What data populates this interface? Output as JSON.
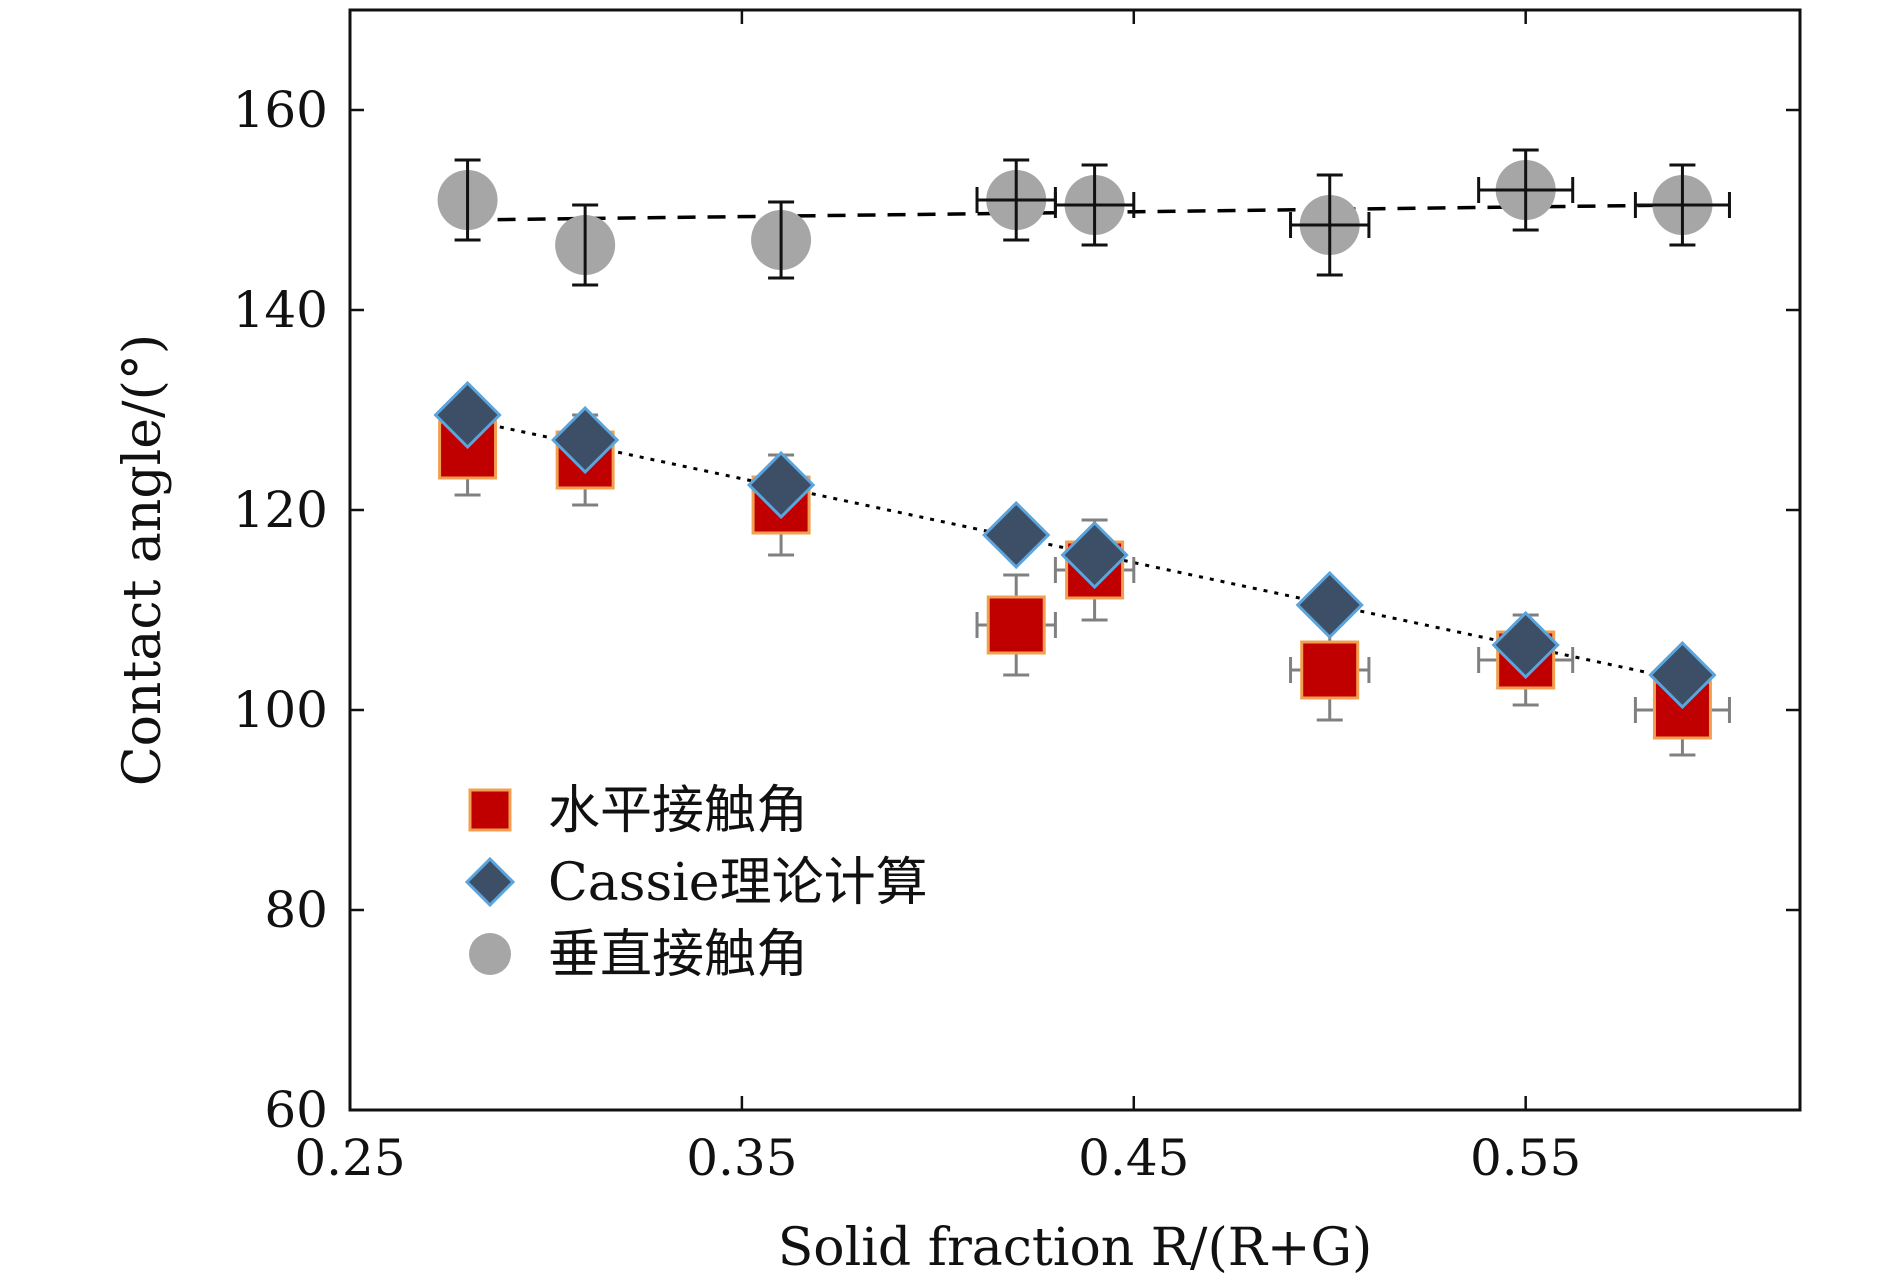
{
  "chart_data": {
    "type": "scatter",
    "title": "",
    "xlabel": "Solid fraction R/(R+G)",
    "ylabel": "Contact angle/(°)",
    "xlim": [
      0.25,
      0.62
    ],
    "ylim": [
      60,
      170
    ],
    "xticks": [
      0.25,
      0.35,
      0.45,
      0.55
    ],
    "xtick_labels": [
      "0.25",
      "0.35",
      "0.45",
      "0.55"
    ],
    "yticks": [
      60,
      80,
      100,
      120,
      140,
      160
    ],
    "ytick_labels": [
      "60",
      "80",
      "100",
      "120",
      "140",
      "160"
    ],
    "grid": false,
    "legend_position": "lower-left",
    "series": [
      {
        "name": "水平接触角",
        "marker": "square",
        "color": "#c00000",
        "edge_color": "#f0a050",
        "error_color": "#808080",
        "points": [
          {
            "x": 0.28,
            "y": 126,
            "yerr": 4.5,
            "xerr": 0
          },
          {
            "x": 0.31,
            "y": 125,
            "yerr": 4.5,
            "xerr": 0
          },
          {
            "x": 0.36,
            "y": 120.5,
            "yerr": 5,
            "xerr": 0
          },
          {
            "x": 0.42,
            "y": 108.5,
            "yerr": 5,
            "xerr": 0.01
          },
          {
            "x": 0.44,
            "y": 114,
            "yerr": 5,
            "xerr": 0.01
          },
          {
            "x": 0.5,
            "y": 104,
            "yerr": 5,
            "xerr": 0.01
          },
          {
            "x": 0.55,
            "y": 105,
            "yerr": 4.5,
            "xerr": 0.012
          },
          {
            "x": 0.59,
            "y": 100,
            "yerr": 4.5,
            "xerr": 0.012
          }
        ]
      },
      {
        "name": "Cassie理论计算",
        "marker": "diamond",
        "color": "#3c4f66",
        "edge_color": "#5ba4dc",
        "points": [
          {
            "x": 0.28,
            "y": 129.5
          },
          {
            "x": 0.31,
            "y": 127
          },
          {
            "x": 0.36,
            "y": 122.5
          },
          {
            "x": 0.42,
            "y": 117.5
          },
          {
            "x": 0.44,
            "y": 115.5
          },
          {
            "x": 0.5,
            "y": 110.5
          },
          {
            "x": 0.55,
            "y": 106.5
          },
          {
            "x": 0.59,
            "y": 103.5
          }
        ]
      },
      {
        "name": "垂直接触角",
        "marker": "circle",
        "color": "#a6a6a6",
        "error_color": "#111111",
        "points": [
          {
            "x": 0.28,
            "y": 151,
            "yerr": 4,
            "xerr": 0
          },
          {
            "x": 0.31,
            "y": 146.5,
            "yerr": 4,
            "xerr": 0
          },
          {
            "x": 0.36,
            "y": 147,
            "yerr": 3.8,
            "xerr": 0
          },
          {
            "x": 0.42,
            "y": 151,
            "yerr": 4,
            "xerr": 0.01
          },
          {
            "x": 0.44,
            "y": 150.5,
            "yerr": 4,
            "xerr": 0.01
          },
          {
            "x": 0.5,
            "y": 148.5,
            "yerr": 5,
            "xerr": 0.01
          },
          {
            "x": 0.55,
            "y": 152,
            "yerr": 4,
            "xerr": 0.012
          },
          {
            "x": 0.59,
            "y": 150.5,
            "yerr": 4,
            "xerr": 0.012
          }
        ]
      }
    ],
    "trend_lines": [
      {
        "style": "dashed",
        "points": [
          {
            "x": 0.28,
            "y": 149
          },
          {
            "x": 0.59,
            "y": 150.5
          }
        ]
      },
      {
        "style": "dotted",
        "points": [
          {
            "x": 0.28,
            "y": 129
          },
          {
            "x": 0.59,
            "y": 103
          }
        ]
      }
    ],
    "legend": [
      {
        "label": "水平接触角",
        "marker": "square"
      },
      {
        "label": "Cassie理论计算",
        "marker": "diamond"
      },
      {
        "label": "垂直接触角",
        "marker": "circle"
      }
    ]
  }
}
